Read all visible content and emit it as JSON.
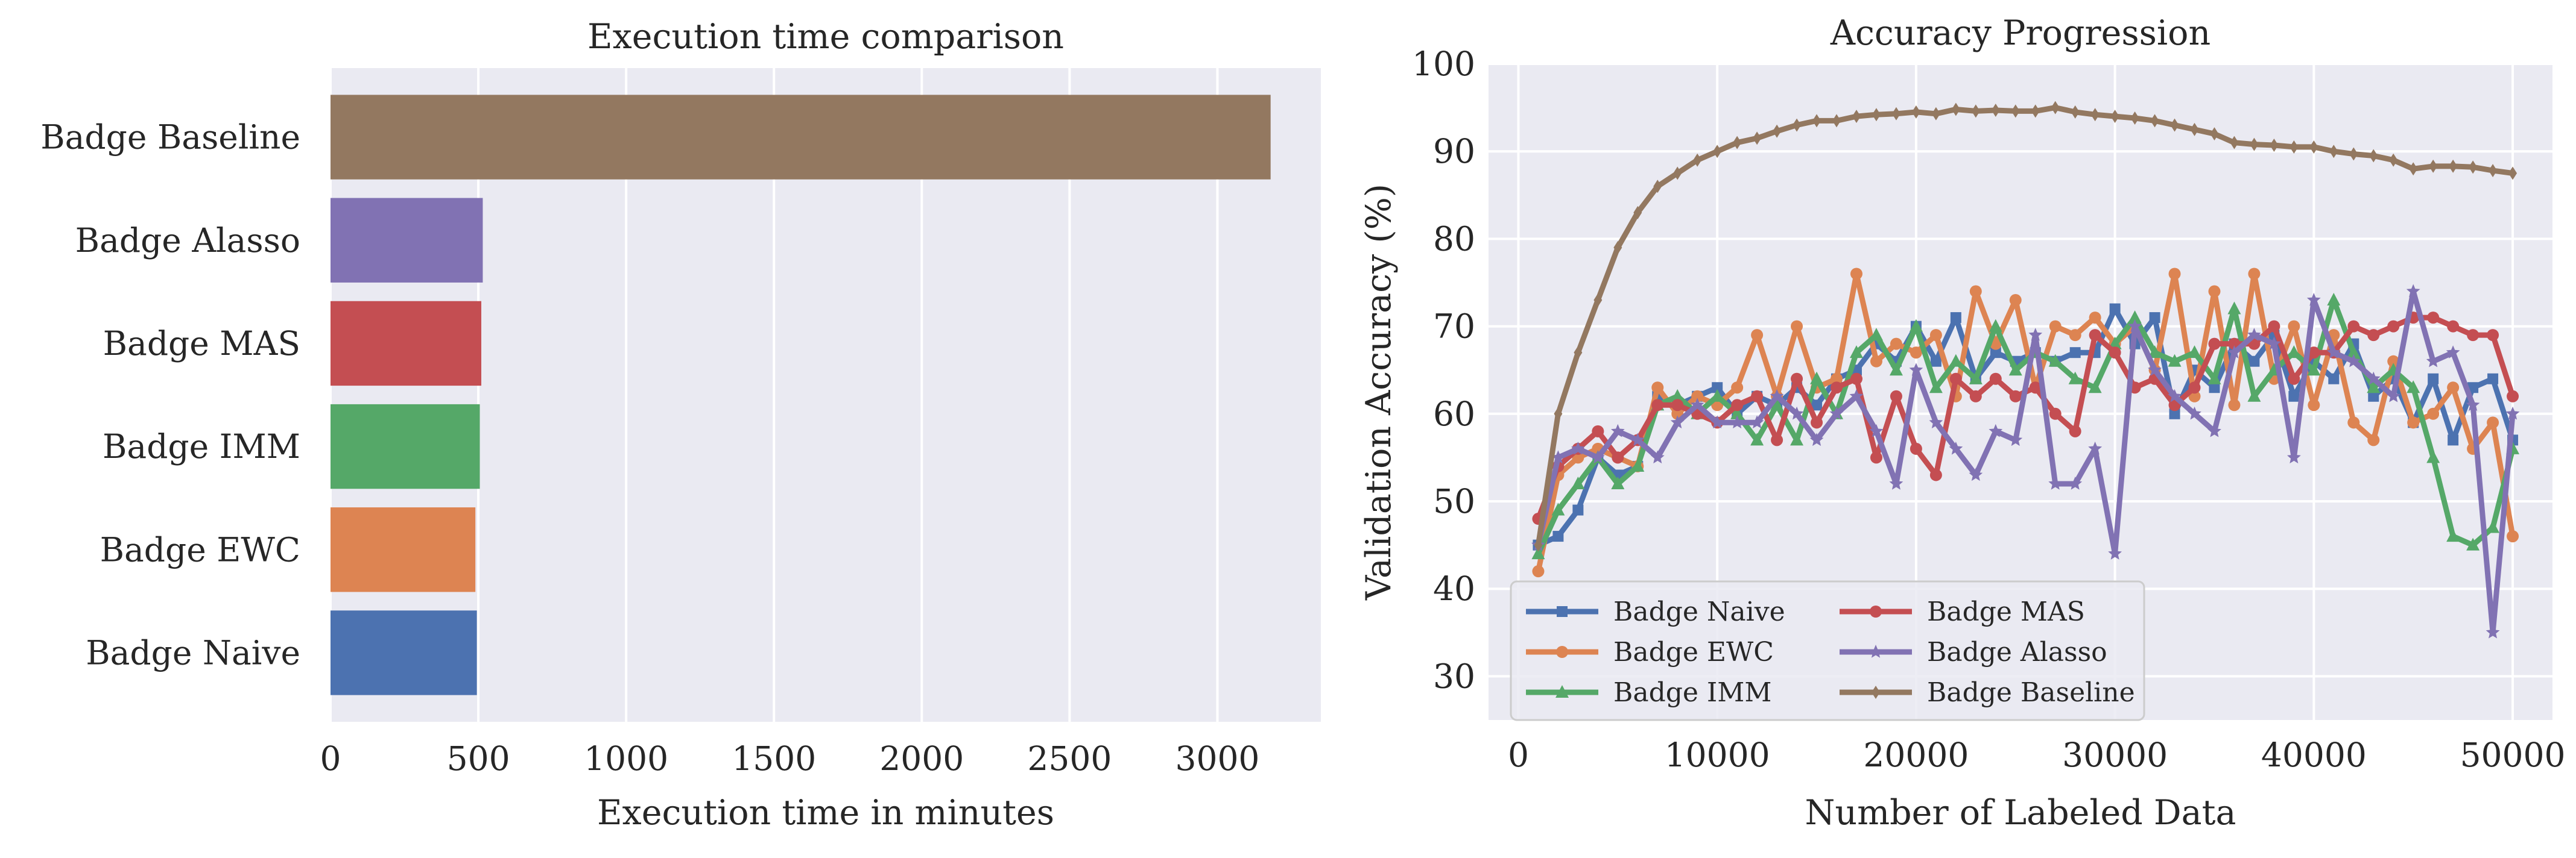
{
  "chart_data": [
    {
      "type": "bar",
      "orientation": "horizontal",
      "title": "Execution time comparison",
      "xlabel": "Execution time in minutes",
      "ylabel": "",
      "xlim": [
        0,
        3350
      ],
      "xticks": [
        0,
        500,
        1000,
        1500,
        2000,
        2500,
        3000
      ],
      "grid": true,
      "categories": [
        "Badge Baseline",
        "Badge Alasso",
        "Badge MAS",
        "Badge IMM",
        "Badge EWC",
        "Badge Naive"
      ],
      "values": [
        3180,
        515,
        510,
        505,
        490,
        495
      ],
      "colors": [
        "#937860",
        "#8172b3",
        "#c44e52",
        "#55a868",
        "#dd8452",
        "#4c72b0"
      ]
    },
    {
      "type": "line",
      "title": "Accuracy Progression",
      "xlabel": "Number of Labeled Data",
      "ylabel": "Validation Accuracy (%)",
      "xlim": [
        -1500,
        52000
      ],
      "ylim": [
        25,
        100
      ],
      "xticks": [
        0,
        10000,
        20000,
        30000,
        40000,
        50000
      ],
      "yticks": [
        30,
        40,
        50,
        60,
        70,
        80,
        90,
        100
      ],
      "grid": true,
      "legend": "lower-left",
      "x": [
        1000,
        2000,
        3000,
        4000,
        5000,
        6000,
        7000,
        8000,
        9000,
        10000,
        11000,
        12000,
        13000,
        14000,
        15000,
        16000,
        17000,
        18000,
        19000,
        20000,
        21000,
        22000,
        23000,
        24000,
        25000,
        26000,
        27000,
        28000,
        29000,
        30000,
        31000,
        32000,
        33000,
        34000,
        35000,
        36000,
        37000,
        38000,
        39000,
        40000,
        41000,
        42000,
        43000,
        44000,
        45000,
        46000,
        47000,
        48000,
        49000,
        50000
      ],
      "series": [
        {
          "name": "Badge Naive",
          "color": "#4c72b0",
          "marker": "square",
          "values": [
            45,
            46,
            49,
            55,
            53,
            54,
            62,
            61,
            62,
            63,
            60,
            62,
            61,
            63,
            61,
            64,
            65,
            68,
            66,
            70,
            66,
            71,
            64,
            67,
            66,
            67,
            66,
            67,
            67,
            72,
            68,
            71,
            60,
            65,
            63,
            68,
            66,
            69,
            62,
            66,
            64,
            68,
            62,
            64,
            59,
            64,
            57,
            63,
            64,
            57
          ]
        },
        {
          "name": "Badge EWC",
          "color": "#dd8452",
          "marker": "circle",
          "values": [
            42,
            53,
            55,
            56,
            55,
            54,
            63,
            60,
            62,
            61,
            63,
            69,
            62,
            70,
            63,
            64,
            76,
            66,
            68,
            67,
            69,
            62,
            74,
            68,
            73,
            63,
            70,
            69,
            71,
            68,
            70,
            65,
            76,
            62,
            74,
            61,
            76,
            64,
            70,
            61,
            69,
            59,
            57,
            66,
            59,
            60,
            63,
            56,
            59,
            46
          ]
        },
        {
          "name": "Badge IMM",
          "color": "#55a868",
          "marker": "triangle",
          "values": [
            44,
            49,
            52,
            55,
            52,
            54,
            61,
            62,
            60,
            62,
            60,
            57,
            61,
            57,
            64,
            60,
            67,
            69,
            65,
            70,
            63,
            66,
            64,
            70,
            65,
            67,
            66,
            64,
            63,
            68,
            71,
            67,
            66,
            67,
            64,
            72,
            62,
            65,
            67,
            65,
            73,
            67,
            63,
            65,
            63,
            55,
            46,
            45,
            47,
            56
          ]
        },
        {
          "name": "Badge MAS",
          "color": "#c44e52",
          "marker": "circle",
          "values": [
            48,
            54,
            56,
            58,
            55,
            57,
            61,
            61,
            60,
            59,
            61,
            62,
            57,
            64,
            59,
            63,
            64,
            55,
            62,
            56,
            53,
            64,
            62,
            64,
            62,
            63,
            60,
            58,
            69,
            67,
            63,
            64,
            61,
            63,
            68,
            68,
            68,
            70,
            64,
            67,
            67,
            70,
            69,
            70,
            71,
            71,
            70,
            69,
            69,
            62
          ]
        },
        {
          "name": "Badge Alasso",
          "color": "#8172b3",
          "marker": "star",
          "values": [
            45,
            55,
            56,
            55,
            58,
            57,
            55,
            59,
            61,
            59,
            59,
            59,
            62,
            60,
            57,
            60,
            62,
            58,
            52,
            65,
            59,
            56,
            53,
            58,
            57,
            69,
            52,
            52,
            56,
            44,
            70,
            65,
            62,
            60,
            58,
            67,
            69,
            68,
            55,
            73,
            67,
            66,
            64,
            62,
            74,
            66,
            67,
            61,
            35,
            60
          ]
        },
        {
          "name": "Badge Baseline",
          "color": "#937860",
          "marker": "diamond",
          "values": [
            45,
            60,
            67,
            73,
            79,
            83,
            86,
            87.5,
            89,
            90,
            91,
            91.5,
            92.3,
            93,
            93.5,
            93.5,
            94,
            94.2,
            94.3,
            94.5,
            94.3,
            94.8,
            94.6,
            94.7,
            94.6,
            94.6,
            95,
            94.5,
            94.2,
            94,
            93.8,
            93.5,
            93,
            92.5,
            92,
            91,
            90.8,
            90.7,
            90.5,
            90.5,
            90,
            89.7,
            89.5,
            89,
            88,
            88.3,
            88.3,
            88.2,
            87.8,
            87.5
          ]
        }
      ]
    }
  ]
}
